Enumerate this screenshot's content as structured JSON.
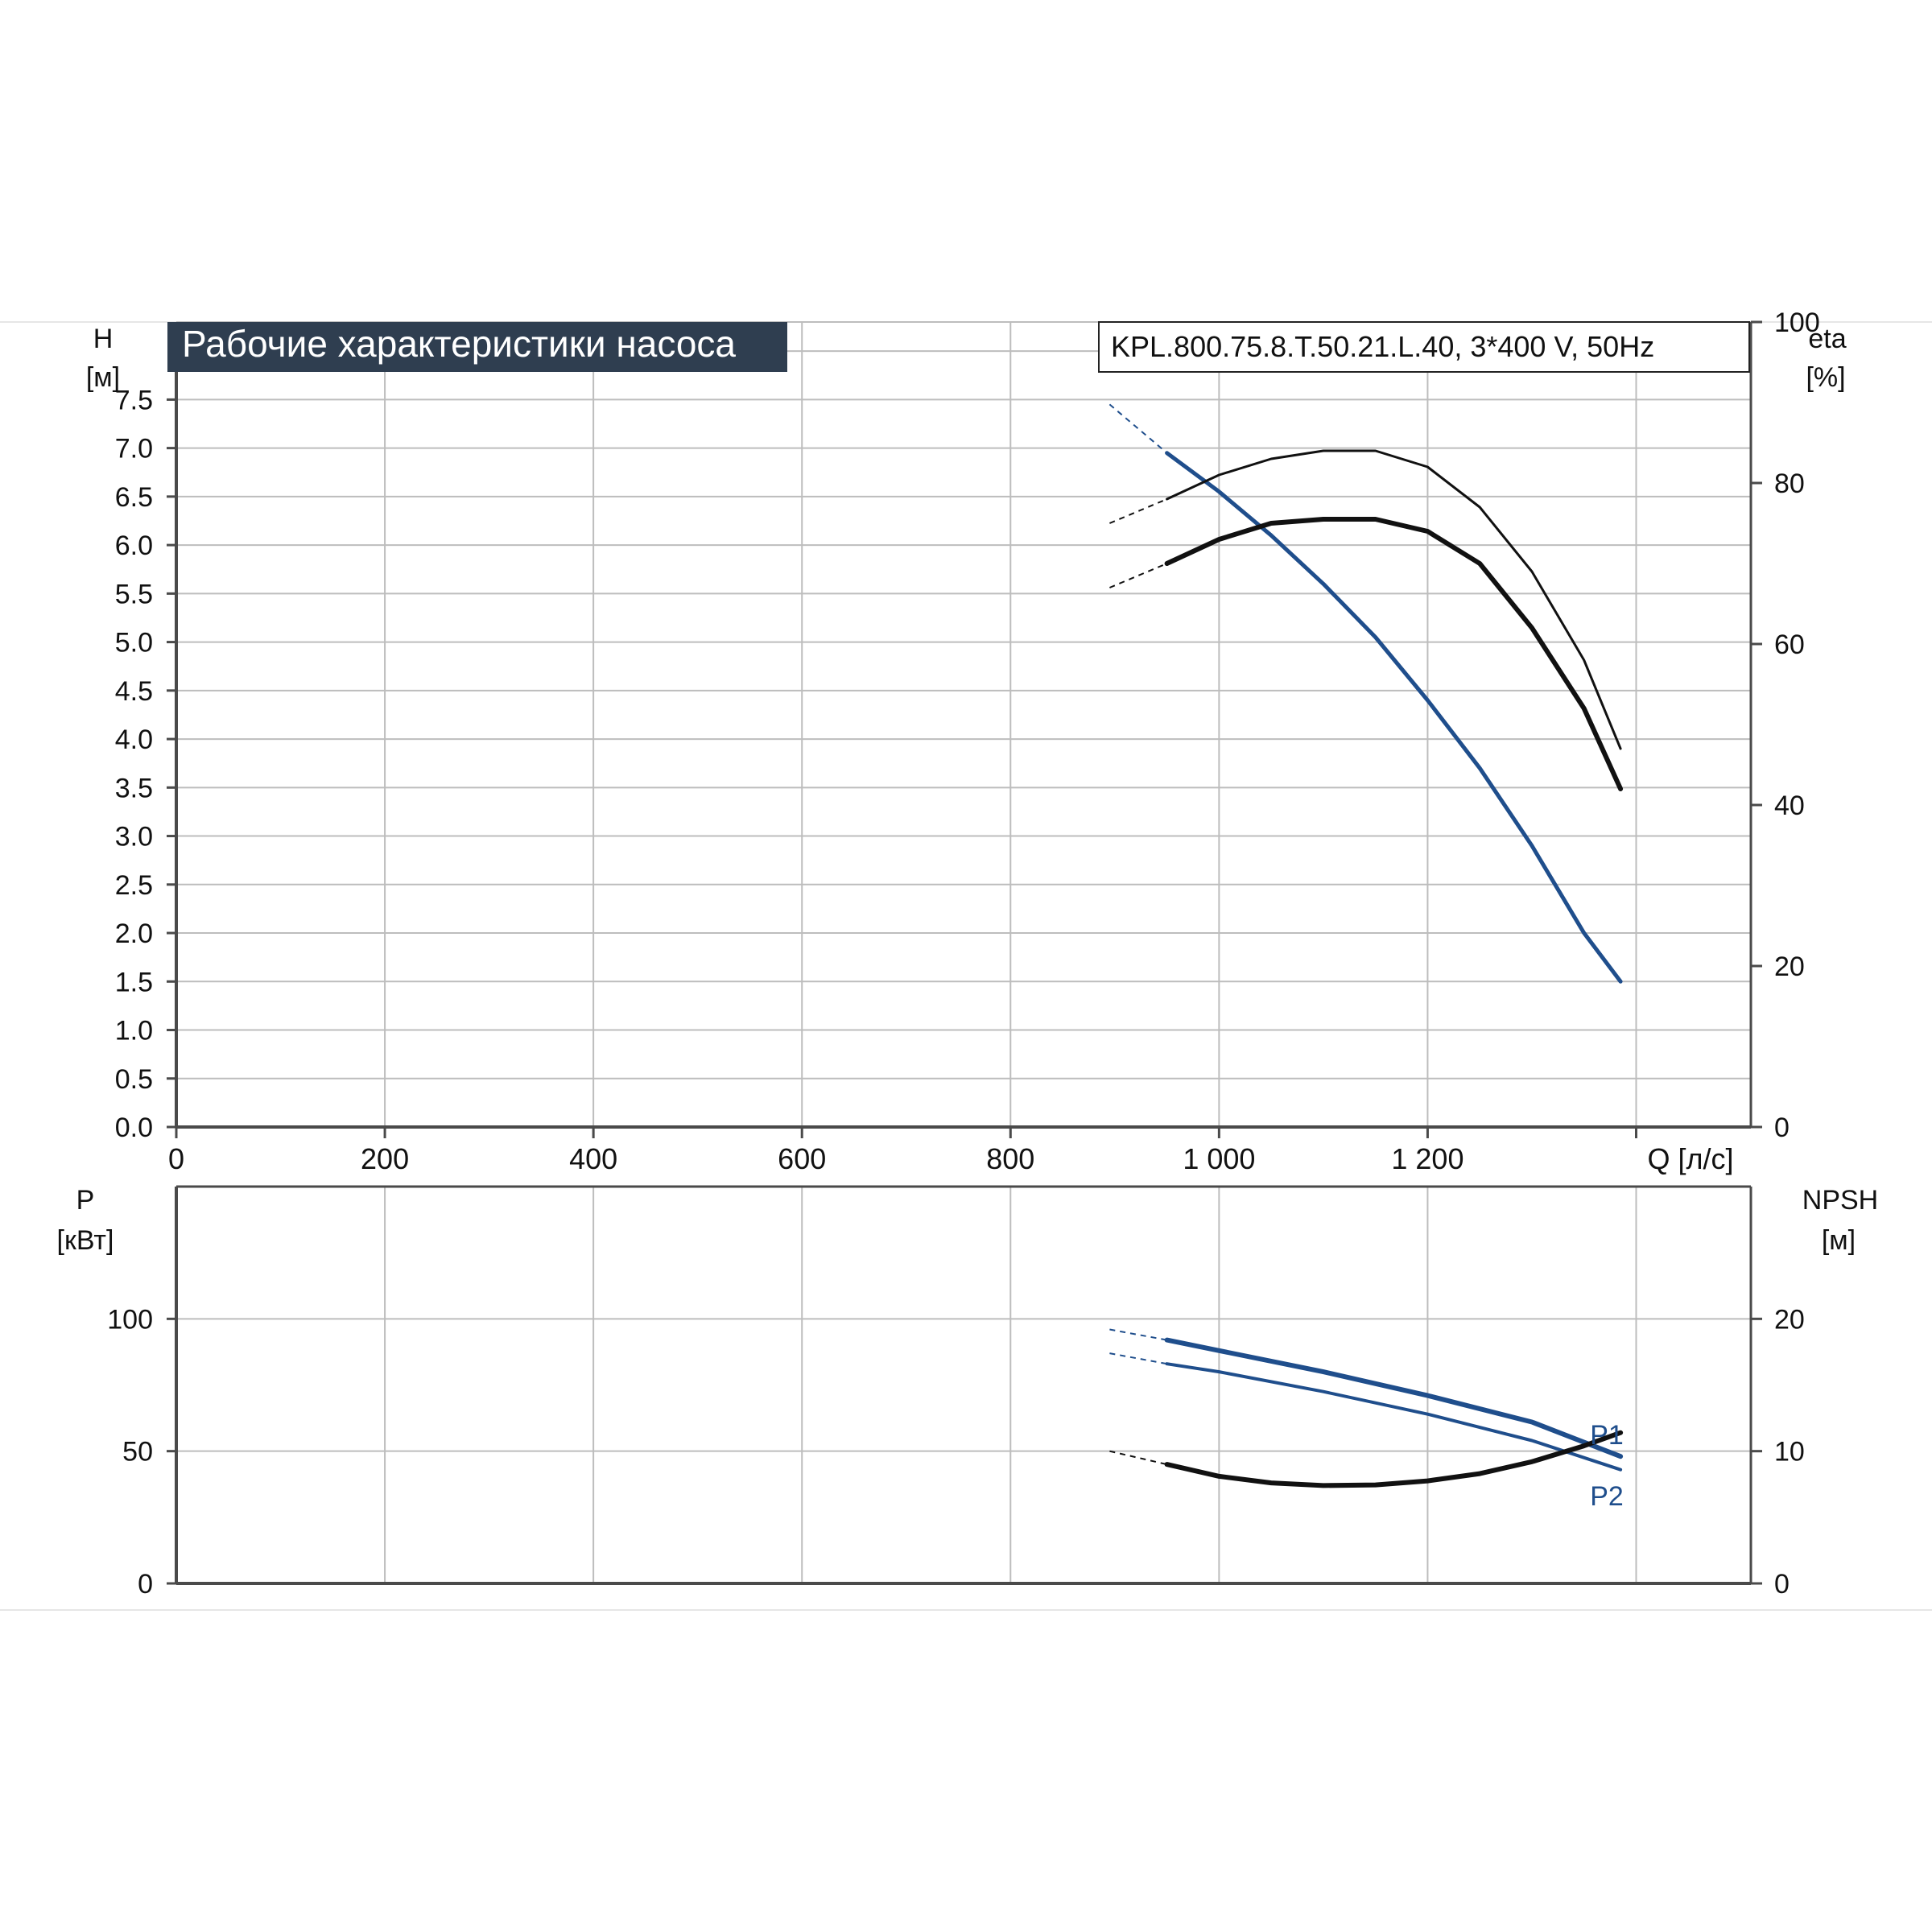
{
  "colors": {
    "blue": "#1f4e8c",
    "black": "#111111",
    "grid": "#bdbdbd",
    "title_bg": "#2f3e50",
    "title_fg": "#ffffff",
    "axis": "#4a4a4a"
  },
  "header": {
    "title": "Рабочие характеристики насоса",
    "model": "KPL.800.75.8.T.50.21.L.40, 3*400 V, 50Hz"
  },
  "chart_data": [
    {
      "type": "line",
      "name": "performance",
      "xlabel": "Q [л/с]",
      "ylabel_line1": "H",
      "ylabel_line2": "[м]",
      "y2label_line1": "eta",
      "y2label_line2": "[%]",
      "xlim": [
        0,
        1510
      ],
      "ylim": [
        0,
        8.3
      ],
      "y2lim": [
        0,
        100
      ],
      "x_ticks": [
        0,
        200,
        400,
        600,
        800,
        1000,
        1200
      ],
      "x_tick_labels": [
        "0",
        "200",
        "400",
        "600",
        "800",
        "1 000",
        "1 200"
      ],
      "y_ticks": [
        0.0,
        0.5,
        1.0,
        1.5,
        2.0,
        2.5,
        3.0,
        3.5,
        4.0,
        4.5,
        5.0,
        5.5,
        6.0,
        6.5,
        7.0,
        7.5
      ],
      "y_tick_labels": [
        "0.0",
        "0.5",
        "1.0",
        "1.5",
        "2.0",
        "2.5",
        "3.0",
        "3.5",
        "4.0",
        "4.5",
        "5.0",
        "5.5",
        "6.0",
        "6.5",
        "7.0",
        "7.5"
      ],
      "y2_ticks": [
        0,
        20,
        40,
        60,
        80,
        100
      ],
      "y2_tick_labels": [
        "0",
        "20",
        "40",
        "60",
        "80",
        "100"
      ],
      "grid": true,
      "series": [
        {
          "axis": "y",
          "color": "blue",
          "width": 5,
          "x": [
            950,
            1000,
            1050,
            1100,
            1150,
            1200,
            1250,
            1300,
            1350,
            1385
          ],
          "y": [
            6.95,
            6.55,
            6.1,
            5.6,
            5.05,
            4.4,
            3.7,
            2.9,
            2.0,
            1.5
          ],
          "ext_x": [
            895,
            950
          ],
          "ext_y": [
            7.45,
            6.95
          ]
        },
        {
          "axis": "y2",
          "color": "black",
          "width": 3,
          "x": [
            950,
            1000,
            1050,
            1100,
            1150,
            1200,
            1250,
            1300,
            1350,
            1385
          ],
          "y": [
            78,
            81,
            83,
            84,
            84,
            82,
            77,
            69,
            58,
            47
          ],
          "ext_x": [
            895,
            950
          ],
          "ext_y": [
            75,
            78
          ]
        },
        {
          "axis": "y2",
          "color": "black",
          "width": 6,
          "x": [
            950,
            1000,
            1050,
            1100,
            1150,
            1200,
            1250,
            1300,
            1350,
            1385
          ],
          "y": [
            70,
            73,
            75,
            75.5,
            75.5,
            74,
            70,
            62,
            52,
            42
          ],
          "ext_x": [
            895,
            950
          ],
          "ext_y": [
            67,
            70
          ]
        }
      ]
    },
    {
      "type": "line",
      "name": "power-npsh",
      "ylabel_line1": "P",
      "ylabel_line2": "[кВт]",
      "y2label_line1": "NPSH",
      "y2label_line2": "[м]",
      "xlim": [
        0,
        1510
      ],
      "ylim": [
        0,
        150
      ],
      "y2lim": [
        0,
        30
      ],
      "y_ticks": [
        0,
        50,
        100
      ],
      "y_tick_labels": [
        "0",
        "50",
        "100"
      ],
      "y2_ticks": [
        0,
        10,
        20
      ],
      "y2_tick_labels": [
        "0",
        "10",
        "20"
      ],
      "grid": true,
      "series": [
        {
          "name": "P1",
          "axis": "y",
          "color": "blue",
          "width": 6,
          "x": [
            950,
            1000,
            1100,
            1200,
            1300,
            1385
          ],
          "y": [
            92,
            88,
            80,
            71,
            61,
            48
          ],
          "ext_x": [
            895,
            950
          ],
          "ext_y": [
            96,
            92
          ]
        },
        {
          "name": "P2",
          "axis": "y",
          "color": "blue",
          "width": 4,
          "x": [
            950,
            1000,
            1100,
            1200,
            1300,
            1385
          ],
          "y": [
            83,
            80,
            72.5,
            64,
            54,
            43
          ],
          "ext_x": [
            895,
            950
          ],
          "ext_y": [
            87,
            83
          ]
        },
        {
          "name": "NPSH",
          "axis": "y2",
          "color": "black",
          "width": 6,
          "x": [
            950,
            1000,
            1050,
            1100,
            1150,
            1200,
            1250,
            1300,
            1350,
            1385
          ],
          "y": [
            9.0,
            8.1,
            7.6,
            7.4,
            7.45,
            7.75,
            8.3,
            9.2,
            10.4,
            11.4
          ],
          "ext_x": [
            895,
            950
          ],
          "ext_y": [
            10.0,
            9.0
          ]
        }
      ],
      "labels": {
        "p1": "P1",
        "p2": "P2"
      }
    }
  ]
}
